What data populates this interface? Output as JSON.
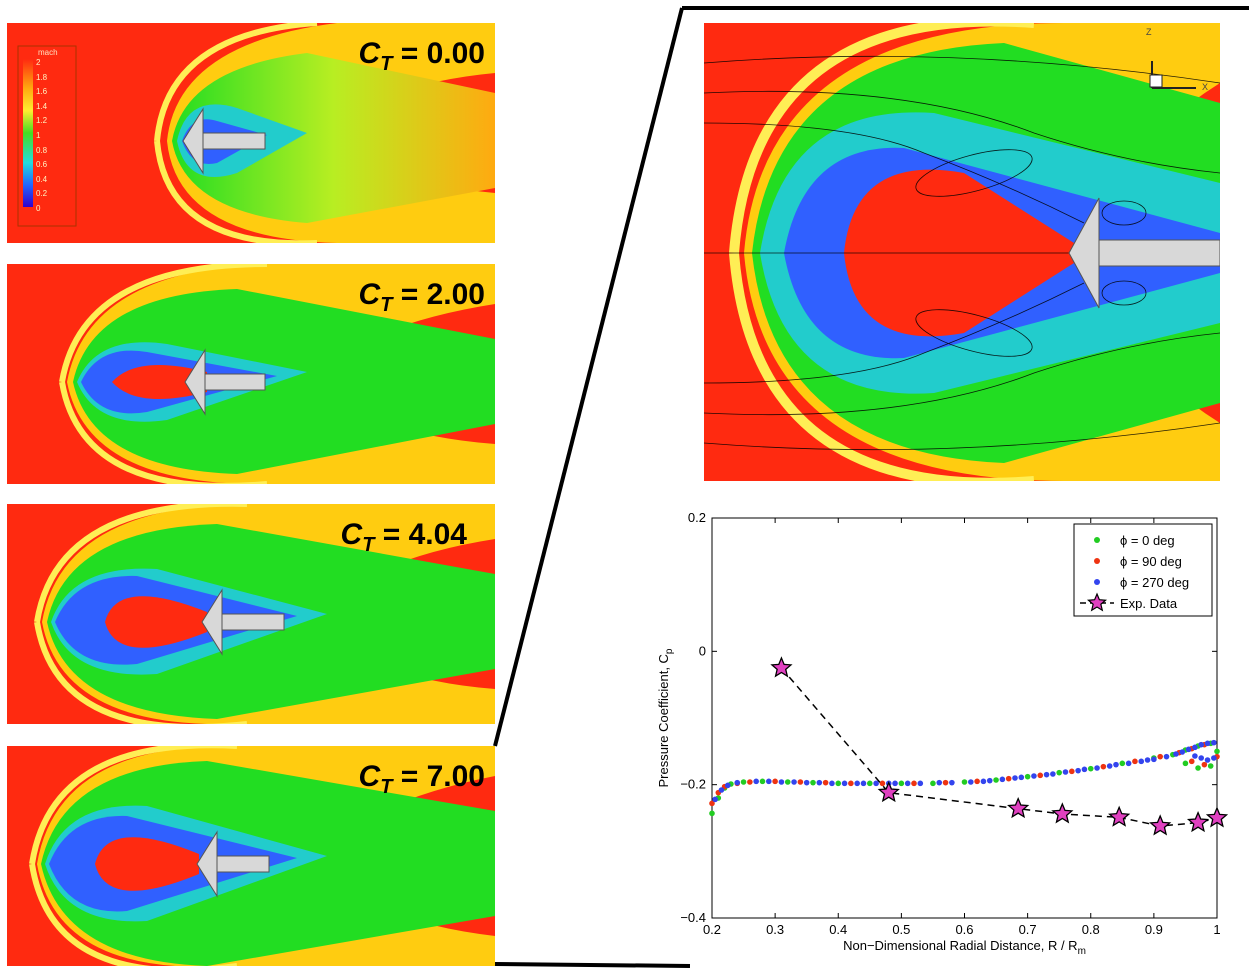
{
  "panels": [
    {
      "label_base": "C",
      "label_sub": "T",
      "label_value": "= 0.00"
    },
    {
      "label_base": "C",
      "label_sub": "T",
      "label_value": "= 2.00"
    },
    {
      "label_base": "C",
      "label_sub": "T",
      "label_value": "= 4.04"
    },
    {
      "label_base": "C",
      "label_sub": "T",
      "label_value": "= 7.00"
    }
  ],
  "colorbar": {
    "title": "mach",
    "ticks": [
      "2",
      "1.8",
      "1.6",
      "1.4",
      "1.2",
      "1",
      "0.8",
      "0.6",
      "0.4",
      "0.2",
      "0"
    ]
  },
  "axes_triad": {
    "z": "Z",
    "x": "X"
  },
  "colors": {
    "background": "#ffffff",
    "mach_high": "#ff2a10",
    "mach_mid": "#22dd22",
    "mach_low": "#2040ff",
    "body": "#d8d8d8"
  },
  "chart_data": {
    "type": "scatter",
    "xlabel": "Non−Dimensional Radial Distance,  R / R",
    "xlabel_sub": "m",
    "ylabel": "Pressure Coefficient,  C",
    "ylabel_sub": "p",
    "xlim": [
      0.2,
      1.0
    ],
    "ylim": [
      -0.4,
      0.2
    ],
    "x_ticks": [
      "0.2",
      "0.3",
      "0.4",
      "0.5",
      "0.6",
      "0.7",
      "0.8",
      "0.9",
      "1"
    ],
    "y_ticks": [
      "0.2",
      "0",
      "−0.2",
      "−0.4"
    ],
    "grid": false,
    "legend_position": "top-right",
    "series": [
      {
        "name": "ϕ   = 0 deg",
        "color": "#22cc22",
        "marker": "dot",
        "x": [
          0.2,
          0.21,
          0.22,
          0.23,
          0.25,
          0.28,
          0.32,
          0.36,
          0.4,
          0.45,
          0.5,
          0.55,
          0.6,
          0.65,
          0.7,
          0.75,
          0.8,
          0.85,
          0.9,
          0.93,
          0.95,
          0.97,
          0.99,
          1.0,
          0.99,
          0.97,
          0.95
        ],
        "y": [
          -0.243,
          -0.22,
          -0.205,
          -0.199,
          -0.196,
          -0.195,
          -0.196,
          -0.197,
          -0.198,
          -0.198,
          -0.198,
          -0.198,
          -0.196,
          -0.193,
          -0.188,
          -0.182,
          -0.176,
          -0.168,
          -0.16,
          -0.155,
          -0.148,
          -0.142,
          -0.138,
          -0.15,
          -0.172,
          -0.175,
          -0.168
        ]
      },
      {
        "name": "ϕ   = 90 deg",
        "color": "#ee3311",
        "marker": "dot",
        "x": [
          0.2,
          0.21,
          0.22,
          0.24,
          0.26,
          0.3,
          0.34,
          0.38,
          0.42,
          0.47,
          0.52,
          0.57,
          0.62,
          0.67,
          0.72,
          0.77,
          0.82,
          0.87,
          0.91,
          0.94,
          0.96,
          0.98,
          1.0,
          0.98,
          0.96
        ],
        "y": [
          -0.228,
          -0.212,
          -0.203,
          -0.198,
          -0.196,
          -0.195,
          -0.196,
          -0.197,
          -0.198,
          -0.198,
          -0.198,
          -0.197,
          -0.195,
          -0.191,
          -0.186,
          -0.18,
          -0.173,
          -0.165,
          -0.158,
          -0.152,
          -0.146,
          -0.14,
          -0.158,
          -0.17,
          -0.165
        ]
      },
      {
        "name": "ϕ   = 270 deg",
        "color": "#3344ee",
        "marker": "dot",
        "x": [
          0.205,
          0.215,
          0.225,
          0.24,
          0.27,
          0.29,
          0.31,
          0.33,
          0.35,
          0.37,
          0.39,
          0.41,
          0.43,
          0.44,
          0.46,
          0.48,
          0.49,
          0.51,
          0.53,
          0.56,
          0.58,
          0.61,
          0.63,
          0.64,
          0.66,
          0.68,
          0.69,
          0.71,
          0.73,
          0.74,
          0.76,
          0.78,
          0.79,
          0.81,
          0.83,
          0.84,
          0.86,
          0.88,
          0.89,
          0.9,
          0.92,
          0.935,
          0.945,
          0.955,
          0.965,
          0.975,
          0.985,
          0.995,
          0.995,
          0.985,
          0.975,
          0.965
        ],
        "y": [
          -0.222,
          -0.208,
          -0.201,
          -0.197,
          -0.195,
          -0.195,
          -0.196,
          -0.196,
          -0.197,
          -0.197,
          -0.198,
          -0.198,
          -0.198,
          -0.198,
          -0.198,
          -0.198,
          -0.198,
          -0.198,
          -0.198,
          -0.197,
          -0.197,
          -0.196,
          -0.195,
          -0.194,
          -0.192,
          -0.19,
          -0.189,
          -0.187,
          -0.185,
          -0.184,
          -0.181,
          -0.179,
          -0.177,
          -0.175,
          -0.172,
          -0.17,
          -0.168,
          -0.165,
          -0.163,
          -0.162,
          -0.158,
          -0.154,
          -0.151,
          -0.147,
          -0.144,
          -0.14,
          -0.138,
          -0.137,
          -0.16,
          -0.163,
          -0.16,
          -0.157
        ]
      },
      {
        "name": "Exp. Data",
        "color": "#e040c0",
        "marker": "star",
        "line": "dashed",
        "x": [
          0.31,
          0.48,
          0.685,
          0.755,
          0.845,
          0.91,
          0.97,
          1.0
        ],
        "y": [
          -0.025,
          -0.212,
          -0.236,
          -0.244,
          -0.249,
          -0.262,
          -0.257,
          -0.25
        ]
      }
    ]
  }
}
